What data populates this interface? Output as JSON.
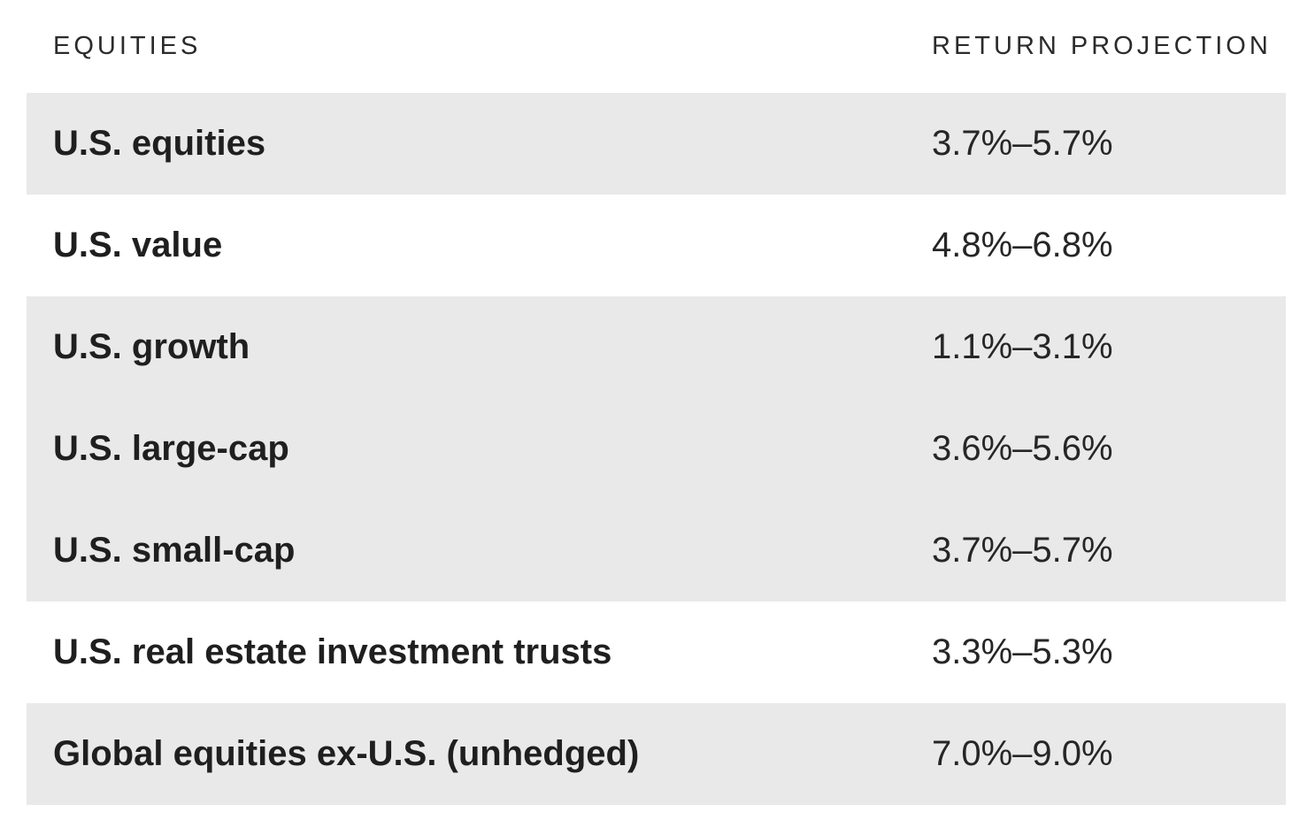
{
  "chart_data": {
    "type": "table",
    "title": "",
    "columns": [
      "EQUITIES",
      "RETURN PROJECTION"
    ],
    "rows": [
      [
        "U.S. equities",
        "3.7%–5.7%"
      ],
      [
        "U.S. value",
        "4.8%–6.8%"
      ],
      [
        "U.S. growth",
        "1.1%–3.1%"
      ],
      [
        "U.S. large-cap",
        "3.6%–5.6%"
      ],
      [
        "U.S. small-cap",
        "3.7%–5.7%"
      ],
      [
        "U.S. real estate investment trusts",
        "3.3%–5.3%"
      ],
      [
        "Global equities ex-U.S. (unhedged)",
        "7.0%–9.0%"
      ]
    ],
    "shaded_rows": [
      0,
      2,
      3,
      4,
      6
    ],
    "colors": {
      "background": "#ffffff",
      "row_shade": "#e9e9e9",
      "text": "#1f1f1f",
      "header_text": "#2b2b2b"
    }
  }
}
